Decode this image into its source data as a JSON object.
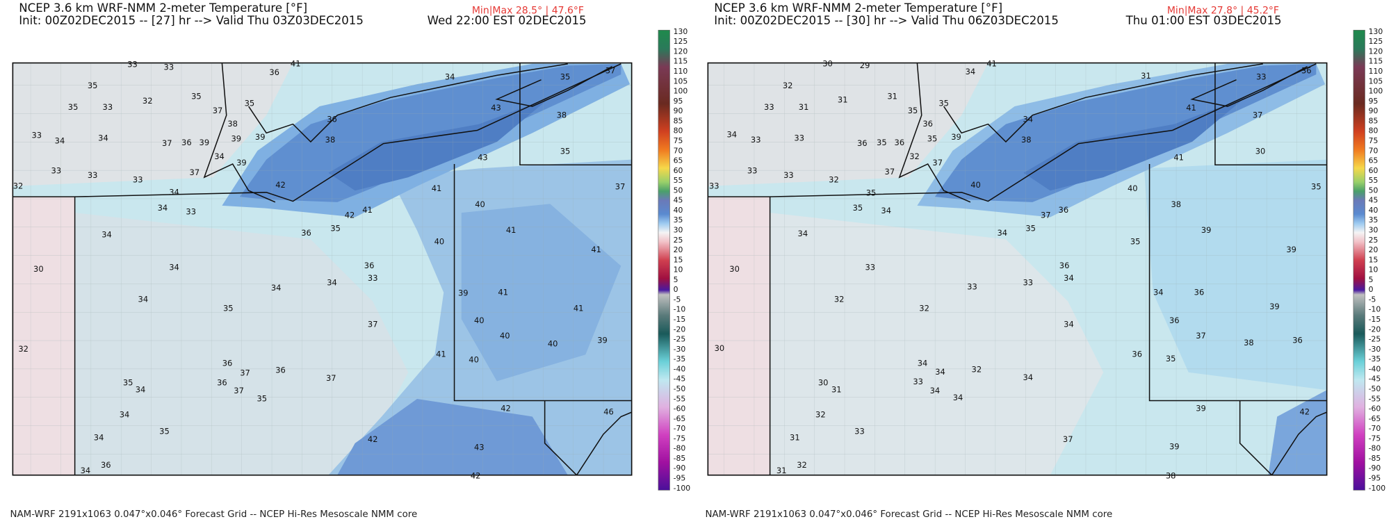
{
  "colorbar": {
    "labels": [
      130,
      125,
      120,
      115,
      110,
      105,
      100,
      95,
      90,
      85,
      80,
      75,
      70,
      65,
      60,
      55,
      50,
      45,
      40,
      35,
      30,
      25,
      20,
      15,
      10,
      5,
      0,
      -5,
      -10,
      -15,
      -20,
      -25,
      -30,
      -35,
      -40,
      -45,
      -50,
      -55,
      -60,
      -65,
      -70,
      -75,
      -80,
      -85,
      -90,
      -95,
      -100
    ]
  },
  "panels": [
    {
      "title": "NCEP 3.6 km WRF-NMM 2-meter Temperature [°F]",
      "init": "Init: 00Z02DEC2015 -- [27] hr --> Valid Thu 03Z03DEC2015",
      "minmax": "Min|Max 28.5° | 47.6°F",
      "valid_local": "Wed 22:00 EST 02DEC2015",
      "footer": "NAM-WRF 2191x1063 0.047°x0.046° Forecast Grid -- NCEP Hi-Res Mesoscale NMM core",
      "stations": [
        33,
        33,
        36,
        41,
        34,
        35,
        37,
        35,
        35,
        32,
        35,
        33,
        37,
        35,
        38,
        43,
        38,
        36,
        33,
        34,
        34,
        37,
        36,
        39,
        39,
        39,
        38,
        35,
        43,
        37,
        33,
        33,
        33,
        34,
        39,
        42,
        41,
        37,
        32,
        34,
        34,
        33,
        40,
        41,
        42,
        35,
        36,
        41,
        40,
        41,
        34,
        30,
        34,
        36,
        33,
        34,
        34,
        39,
        41,
        34,
        35,
        41,
        40,
        37,
        40,
        39,
        40,
        32,
        41,
        40,
        36,
        37,
        36,
        37,
        36,
        35,
        34,
        37,
        35,
        42,
        46,
        34,
        35,
        42,
        43,
        34,
        36,
        34,
        42
      ]
    },
    {
      "title": "NCEP 3.6 km WRF-NMM 2-meter Temperature [°F]",
      "init": "Init: 00Z02DEC2015 -- [30] hr --> Valid Thu 06Z03DEC2015",
      "minmax": "Min|Max 27.8° | 45.2°F",
      "valid_local": "Thu 01:00 EST 03DEC2015",
      "footer": "NAM-WRF 2191x1063 0.047°x0.046° Forecast Grid -- NCEP Hi-Res Mesoscale NMM core",
      "stations": [
        30,
        29,
        34,
        41,
        31,
        33,
        36,
        32,
        31,
        33,
        31,
        31,
        35,
        36,
        35,
        34,
        41,
        37,
        34,
        33,
        33,
        36,
        35,
        36,
        35,
        39,
        38,
        30,
        41,
        33,
        33,
        32,
        37,
        32,
        37,
        35,
        40,
        40,
        35,
        33,
        35,
        34,
        37,
        36,
        38,
        35,
        34,
        35,
        39,
        39,
        34,
        30,
        33,
        36,
        34,
        33,
        33,
        34,
        36,
        32,
        32,
        39,
        36,
        34,
        37,
        38,
        36,
        30,
        36,
        35,
        34,
        34,
        32,
        34,
        33,
        30,
        31,
        34,
        34,
        39,
        42,
        32,
        33,
        37,
        39,
        31,
        32,
        31,
        38
      ]
    }
  ]
}
